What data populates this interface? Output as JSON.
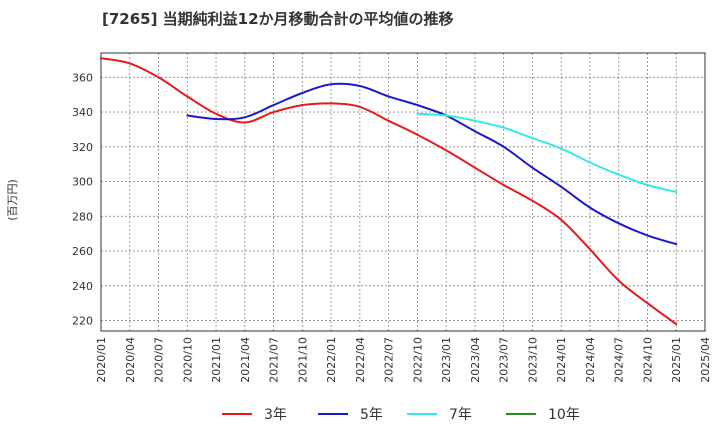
{
  "chart_data": {
    "type": "line",
    "title": "[7265]  当期純利益12か月移動合計の平均値の推移",
    "ylabel": "(百万円)",
    "xlabel": "",
    "ylim": [
      214,
      374
    ],
    "yticks": [
      220,
      240,
      260,
      280,
      300,
      320,
      340,
      360
    ],
    "x_ticks": [
      "2020/01",
      "2020/04",
      "2020/07",
      "2020/10",
      "2021/01",
      "2021/04",
      "2021/07",
      "2021/10",
      "2022/01",
      "2022/04",
      "2022/07",
      "2022/10",
      "2023/01",
      "2023/04",
      "2023/07",
      "2023/10",
      "2024/01",
      "2024/04",
      "2024/07",
      "2024/10",
      "2025/01",
      "2025/04"
    ],
    "grid": true,
    "legend_position": "bottom",
    "series": [
      {
        "name": "3年",
        "color": "#e8191b",
        "x": [
          "2020/01",
          "2020/04",
          "2020/07",
          "2020/10",
          "2021/01",
          "2021/04",
          "2021/07",
          "2021/10",
          "2022/01",
          "2022/04",
          "2022/07",
          "2022/10",
          "2023/01",
          "2023/04",
          "2023/07",
          "2023/10",
          "2024/01",
          "2024/04",
          "2024/07",
          "2024/10",
          "2025/01"
        ],
        "values": [
          371,
          368,
          360,
          349,
          339,
          334,
          340,
          344,
          345,
          343,
          335,
          327,
          318,
          308,
          298,
          289,
          278,
          261,
          243,
          230,
          218
        ]
      },
      {
        "name": "5年",
        "color": "#1a1acc",
        "x": [
          "2020/10",
          "2021/01",
          "2021/04",
          "2021/07",
          "2021/10",
          "2022/01",
          "2022/04",
          "2022/07",
          "2022/10",
          "2023/01",
          "2023/04",
          "2023/07",
          "2023/10",
          "2024/01",
          "2024/04",
          "2024/07",
          "2024/10",
          "2025/01"
        ],
        "values": [
          338,
          336,
          337,
          344,
          351,
          356,
          355,
          349,
          344,
          338,
          329,
          320,
          308,
          297,
          285,
          276,
          269,
          264
        ]
      },
      {
        "name": "7年",
        "color": "#33e8e8",
        "x": [
          "2022/10",
          "2023/01",
          "2023/04",
          "2023/07",
          "2023/10",
          "2024/01",
          "2024/04",
          "2024/07",
          "2024/10",
          "2025/01"
        ],
        "values": [
          339,
          338,
          335,
          331,
          325,
          319,
          311,
          304,
          298,
          294
        ]
      },
      {
        "name": "10年",
        "color": "#2a8a2a",
        "x": [],
        "values": []
      }
    ]
  }
}
